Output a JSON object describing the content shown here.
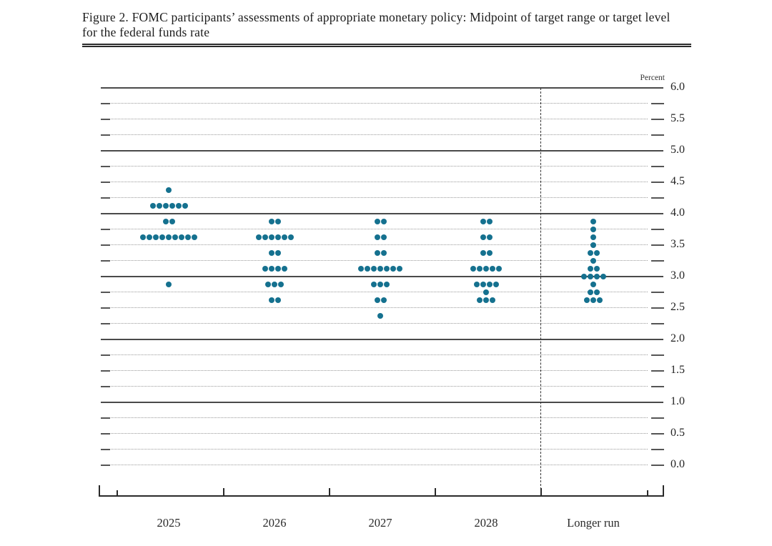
{
  "figure": {
    "title": "Figure 2. FOMC participants’ assessments of appropriate monetary policy: Midpoint of target range or target level for the federal funds rate",
    "unit_label": "Percent"
  },
  "chart_data": {
    "type": "scatter",
    "subtype": "fomc-dot-plot",
    "title": "Figure 2. FOMC participants’ assessments of appropriate monetary policy: Midpoint of target range or target level for the federal funds rate",
    "ylabel": "Percent",
    "ylim": [
      0.0,
      6.0
    ],
    "y_tick_interval_labeled": 0.5,
    "y_tick_interval_grid": 0.25,
    "grid": "dotted lines every 0.25 percent with edge ticks; solid lines at integer percents",
    "legend_position": "none",
    "y_tick_labels": [
      "6.0",
      "5.5",
      "5.0",
      "4.5",
      "4.0",
      "3.5",
      "3.0",
      "2.5",
      "2.0",
      "1.5",
      "1.0",
      "0.5",
      "0.0"
    ],
    "categories": [
      "2025",
      "2026",
      "2027",
      "2028",
      "Longer run"
    ],
    "separator_before_category": "Longer run",
    "dot_color": "#15718f",
    "distributions": [
      {
        "category": "2025",
        "dots": [
          {
            "rate": 4.375,
            "count": 1
          },
          {
            "rate": 4.125,
            "count": 6
          },
          {
            "rate": 3.875,
            "count": 2
          },
          {
            "rate": 3.625,
            "count": 9
          },
          {
            "rate": 2.875,
            "count": 1
          }
        ]
      },
      {
        "category": "2026",
        "dots": [
          {
            "rate": 3.875,
            "count": 2
          },
          {
            "rate": 3.625,
            "count": 6
          },
          {
            "rate": 3.375,
            "count": 2
          },
          {
            "rate": 3.125,
            "count": 4
          },
          {
            "rate": 2.875,
            "count": 3
          },
          {
            "rate": 2.625,
            "count": 2
          }
        ]
      },
      {
        "category": "2027",
        "dots": [
          {
            "rate": 3.875,
            "count": 2
          },
          {
            "rate": 3.625,
            "count": 2
          },
          {
            "rate": 3.375,
            "count": 2
          },
          {
            "rate": 3.125,
            "count": 7
          },
          {
            "rate": 2.875,
            "count": 3
          },
          {
            "rate": 2.625,
            "count": 2
          },
          {
            "rate": 2.375,
            "count": 1
          }
        ]
      },
      {
        "category": "2028",
        "dots": [
          {
            "rate": 3.875,
            "count": 2
          },
          {
            "rate": 3.625,
            "count": 2
          },
          {
            "rate": 3.375,
            "count": 2
          },
          {
            "rate": 3.125,
            "count": 5
          },
          {
            "rate": 2.875,
            "count": 4
          },
          {
            "rate": 2.75,
            "count": 1
          },
          {
            "rate": 2.625,
            "count": 3
          }
        ]
      },
      {
        "category": "Longer run",
        "dots": [
          {
            "rate": 3.875,
            "count": 1
          },
          {
            "rate": 3.75,
            "count": 1
          },
          {
            "rate": 3.625,
            "count": 1
          },
          {
            "rate": 3.5,
            "count": 1
          },
          {
            "rate": 3.375,
            "count": 2
          },
          {
            "rate": 3.25,
            "count": 1
          },
          {
            "rate": 3.125,
            "count": 2
          },
          {
            "rate": 3.0,
            "count": 4
          },
          {
            "rate": 2.875,
            "count": 1
          },
          {
            "rate": 2.75,
            "count": 2
          },
          {
            "rate": 2.625,
            "count": 3
          }
        ]
      }
    ]
  }
}
